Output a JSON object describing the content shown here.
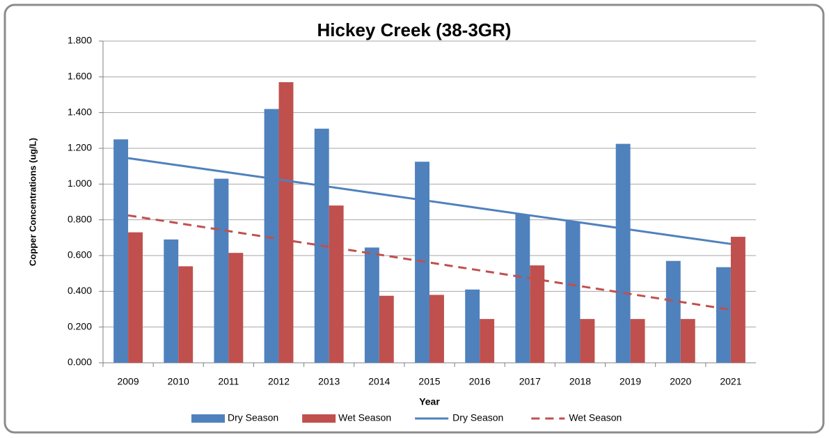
{
  "chart_data": {
    "type": "bar",
    "title": "Hickey Creek (38-3GR)",
    "x_label": "Year",
    "y_label": "Copper Concentrations (ug/L)",
    "categories": [
      "2009",
      "2010",
      "2011",
      "2012",
      "2013",
      "2014",
      "2015",
      "2016",
      "2017",
      "2018",
      "2019",
      "2020",
      "2021"
    ],
    "series": [
      {
        "name": "Dry Season",
        "color": "#4f81bd",
        "values": [
          1.25,
          0.69,
          1.03,
          1.42,
          1.31,
          0.645,
          1.125,
          0.41,
          0.83,
          0.79,
          1.225,
          0.57,
          0.535
        ]
      },
      {
        "name": "Wet Season",
        "color": "#c0504d",
        "values": [
          0.73,
          0.54,
          0.615,
          1.57,
          0.88,
          0.375,
          0.38,
          0.245,
          0.545,
          0.245,
          0.245,
          0.245,
          0.705
        ]
      }
    ],
    "trendlines": [
      {
        "name": "Dry Season",
        "color": "#4f81bd",
        "dashed": false,
        "values": [
          1.145,
          1.105,
          1.065,
          1.025,
          0.985,
          0.945,
          0.905,
          0.865,
          0.825,
          0.785,
          0.745,
          0.705,
          0.665
        ]
      },
      {
        "name": "Wet Season",
        "color": "#c0504d",
        "dashed": true,
        "values": [
          0.825,
          0.781,
          0.737,
          0.693,
          0.649,
          0.605,
          0.561,
          0.517,
          0.473,
          0.429,
          0.385,
          0.341,
          0.297
        ]
      }
    ],
    "ylim": [
      0,
      1.8
    ],
    "yticks": [
      {
        "value": 0,
        "label": "0.000"
      },
      {
        "value": 0.2,
        "label": "0.200"
      },
      {
        "value": 0.4,
        "label": "0.400"
      },
      {
        "value": 0.6,
        "label": "0.600"
      },
      {
        "value": 0.8,
        "label": "0.800"
      },
      {
        "value": 1,
        "label": "1.000"
      },
      {
        "value": 1.2,
        "label": "1.200"
      },
      {
        "value": 1.4,
        "label": "1.400"
      },
      {
        "value": 1.6,
        "label": "1.600"
      },
      {
        "value": 1.8,
        "label": "1.800"
      }
    ],
    "grid": true,
    "legend": "bottom"
  }
}
